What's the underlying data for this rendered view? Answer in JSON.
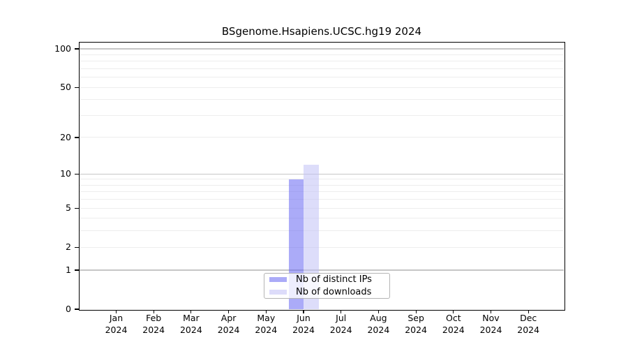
{
  "chart_data": {
    "type": "bar",
    "title": "BSgenome.Hsapiens.UCSC.hg19 2024",
    "y_scale": "log1p",
    "x_months": [
      "Jan",
      "Feb",
      "Mar",
      "Apr",
      "May",
      "Jun",
      "Jul",
      "Aug",
      "Sep",
      "Oct",
      "Nov",
      "Dec"
    ],
    "x_year": "2024",
    "yticks": [
      0,
      1,
      2,
      5,
      10,
      20,
      50,
      100
    ],
    "ylim": [
      0,
      113
    ],
    "grid": {
      "minor_values": [
        2,
        3,
        4,
        5,
        6,
        7,
        8,
        9,
        20,
        30,
        40,
        50,
        60,
        70,
        80,
        90
      ],
      "major_values": [
        1,
        10,
        100
      ],
      "minor_color": "#ededed",
      "major_color": "#c6c6c6"
    },
    "series": [
      {
        "name": "Nb of distinct IPs",
        "color": "#6666f2",
        "alpha": 0.55,
        "rendered_color": "#ababf8",
        "values": [
          0,
          0,
          0,
          0,
          0,
          9,
          0,
          0,
          0,
          0,
          0,
          0
        ]
      },
      {
        "name": "Nb of downloads",
        "color": "#c1c1f6",
        "alpha": 0.55,
        "rendered_color": "#dddcfa",
        "values": [
          0,
          0,
          0,
          0,
          0,
          12,
          0,
          0,
          0,
          0,
          0,
          0
        ]
      }
    ],
    "legend": {
      "position": "bottom-center"
    },
    "frame_color": "#000000",
    "background_color": "#ffffff",
    "text_color": "#000000"
  }
}
